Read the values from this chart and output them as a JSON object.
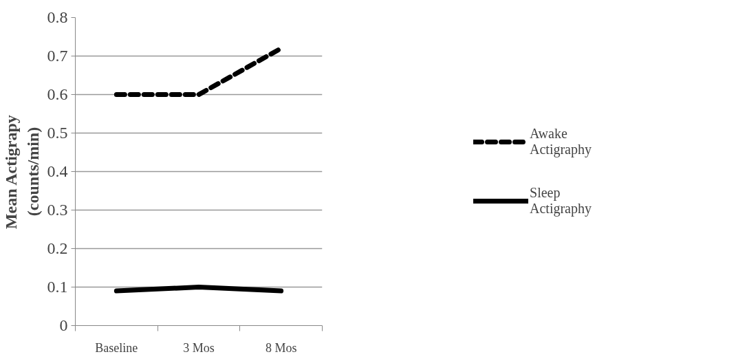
{
  "chart_data": {
    "type": "line",
    "ylabel": "Mean Actigrapy\n(counts/min)",
    "categories": [
      "Baseline",
      "3 Mos",
      "8 Mos"
    ],
    "series": [
      {
        "name": "Awake\nActigraphy",
        "color": "#000000",
        "line_style": "dashed",
        "values": [
          0.6,
          0.6,
          0.72
        ]
      },
      {
        "name": "Sleep\nActigraphy",
        "color": "#000000",
        "line_style": "solid",
        "values": [
          0.09,
          0.1,
          0.09
        ]
      }
    ],
    "ylim": [
      0,
      0.8
    ],
    "yticks": [
      0,
      0.1,
      0.2,
      0.3,
      0.4,
      0.5,
      0.6,
      0.7,
      0.8
    ],
    "grid": "y",
    "legend": "right",
    "marker": "none"
  }
}
